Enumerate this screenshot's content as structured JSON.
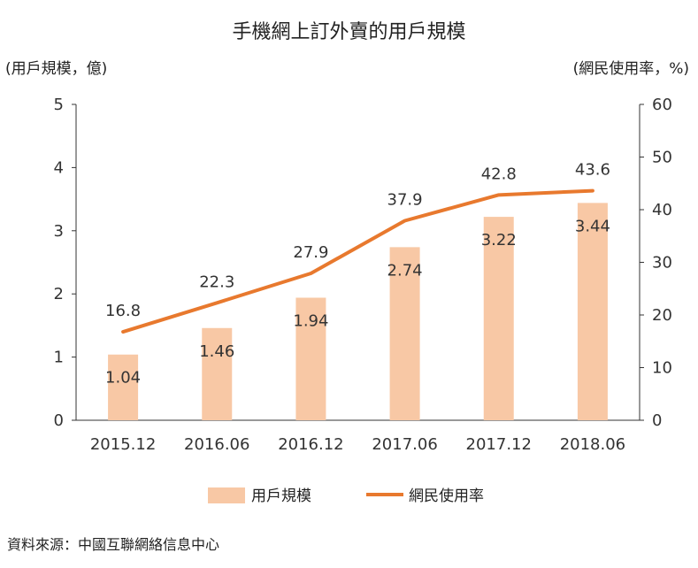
{
  "title": "手機網上訂外賣的用戶規模",
  "left_axis_title": "(用戶規模，億)",
  "right_axis_title": "(網民使用率，%)",
  "source": "資料來源：中國互聯網絡信息中心",
  "legend": {
    "bar_label": "用戶規模",
    "line_label": "網民使用率"
  },
  "colors": {
    "bar": "#f8c8a5",
    "line": "#e8792e",
    "axis": "#333333"
  },
  "chart_data": {
    "type": "bar",
    "title": "手機網上訂外賣的用戶規模",
    "categories": [
      "2015.12",
      "2016.06",
      "2016.12",
      "2017.06",
      "2017.12",
      "2018.06"
    ],
    "series": [
      {
        "name": "用戶規模",
        "type": "bar",
        "axis": "left",
        "values": [
          1.04,
          1.46,
          1.94,
          2.74,
          3.22,
          3.44
        ],
        "labels": [
          "1.04",
          "1.46",
          "1.94",
          "2.74",
          "3.22",
          "3.44"
        ]
      },
      {
        "name": "網民使用率",
        "type": "line",
        "axis": "right",
        "values": [
          16.8,
          22.3,
          27.9,
          37.9,
          42.8,
          43.6
        ],
        "labels": [
          "16.8",
          "22.3",
          "27.9",
          "37.9",
          "42.8",
          "43.6"
        ]
      }
    ],
    "ylabel_left": "(用戶規模，億)",
    "ylabel_right": "(網民使用率，%)",
    "ylim_left": [
      0,
      5
    ],
    "ylim_right": [
      0,
      60
    ],
    "yticks_left": [
      "0",
      "1",
      "2",
      "3",
      "4",
      "5"
    ],
    "yticks_right": [
      "0",
      "10",
      "20",
      "30",
      "40",
      "50",
      "60"
    ],
    "grid": false,
    "legend_position": "bottom"
  }
}
